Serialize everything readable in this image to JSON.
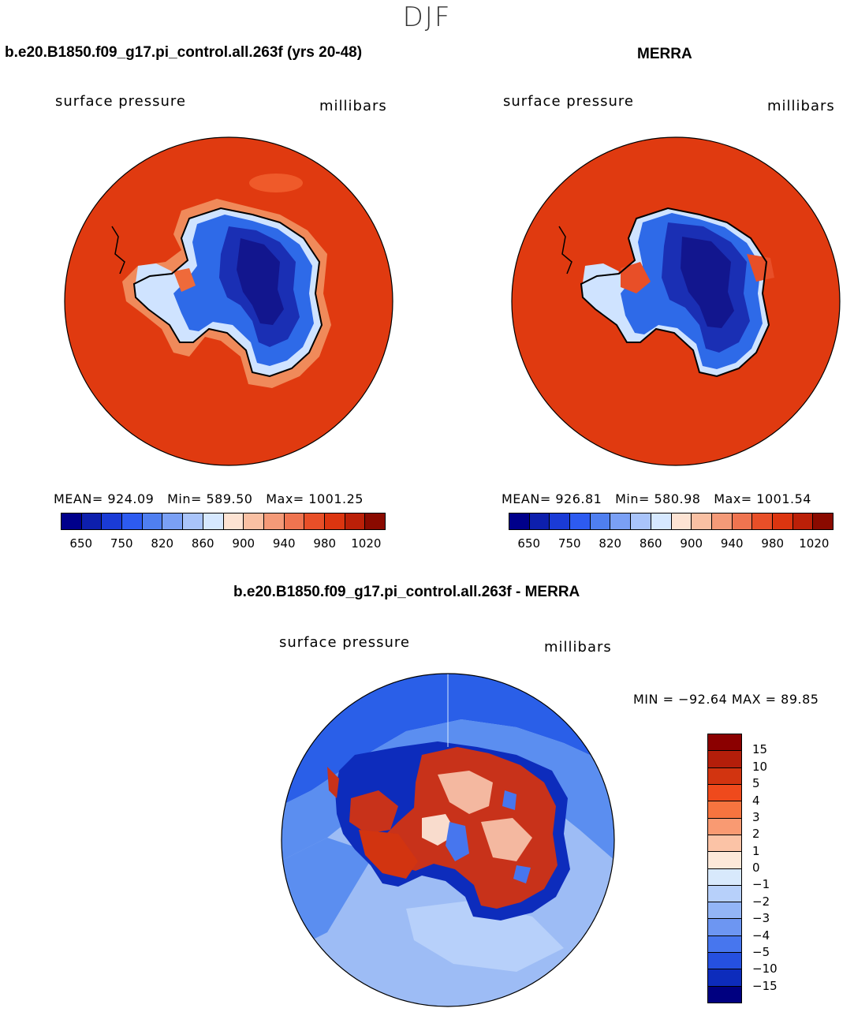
{
  "season": "DJF",
  "colors": {
    "ocean_model": "#e03a10",
    "ocean_obs": "#e03a10",
    "land_dark": "#1a2fb4",
    "land_deep": "#12168e",
    "land_mid": "#2e6ae8",
    "coast_light": "#cfe3ff",
    "diff_ocean_light": "#9dbcf5",
    "diff_ocean_mid": "#5b8ef0",
    "diff_ocean_dark": "#2a5fe8",
    "diff_land_red": "#c8321a",
    "diff_land_light": "#f4b8a0"
  },
  "chart_data": [
    {
      "type": "heatmap",
      "title": "b.e20.B1850.f09_g17.pi_control.all.263f (yrs 20-48)",
      "variable": "surface pressure",
      "units": "millibars",
      "mean_label": "MEAN=",
      "mean": "924.09",
      "min_label": "Min=",
      "min": "589.50",
      "max_label": "Max=",
      "max": "1001.25",
      "levels": [
        "650",
        "750",
        "820",
        "860",
        "900",
        "940",
        "980",
        "1020"
      ],
      "colorbar": [
        "#00008b",
        "#0d1fad",
        "#1a3bd6",
        "#2d5bf0",
        "#4f7ff0",
        "#7aa0f5",
        "#a9c4fa",
        "#d6e8ff",
        "#fde3d3",
        "#f9c0a3",
        "#f49a78",
        "#ef7450",
        "#e84f28",
        "#dc3510",
        "#bb2008",
        "#8a0a00"
      ]
    },
    {
      "type": "heatmap",
      "title": "MERRA",
      "variable": "surface pressure",
      "units": "millibars",
      "mean_label": "MEAN=",
      "mean": "926.81",
      "min_label": "Min=",
      "min": "580.98",
      "max_label": "Max=",
      "max": "1001.54",
      "levels": [
        "650",
        "750",
        "820",
        "860",
        "900",
        "940",
        "980",
        "1020"
      ],
      "colorbar": [
        "#00008b",
        "#0d1fad",
        "#1a3bd6",
        "#2d5bf0",
        "#4f7ff0",
        "#7aa0f5",
        "#a9c4fa",
        "#d6e8ff",
        "#fde3d3",
        "#f9c0a3",
        "#f49a78",
        "#ef7450",
        "#e84f28",
        "#dc3510",
        "#bb2008",
        "#8a0a00"
      ]
    },
    {
      "type": "heatmap",
      "title": "b.e20.B1850.f09_g17.pi_control.all.263f - MERRA",
      "variable": "surface pressure",
      "units": "millibars",
      "minmax_label": "MIN = −92.64 MAX =  89.85",
      "min": -92.64,
      "max": 89.85,
      "levels": [
        "15",
        "10",
        "5",
        "4",
        "3",
        "2",
        "1",
        "0",
        "−1",
        "−2",
        "−3",
        "−4",
        "−5",
        "−10",
        "−15"
      ],
      "colorbar": [
        "#8b0000",
        "#b41e0a",
        "#d23410",
        "#ef4a1c",
        "#f7743f",
        "#f99a72",
        "#fbc3a6",
        "#fde8d9",
        "#d8e9fc",
        "#b7d0fa",
        "#93b5f6",
        "#6d96f2",
        "#4776ee",
        "#2550e0",
        "#0d2cbc",
        "#000080"
      ]
    }
  ]
}
